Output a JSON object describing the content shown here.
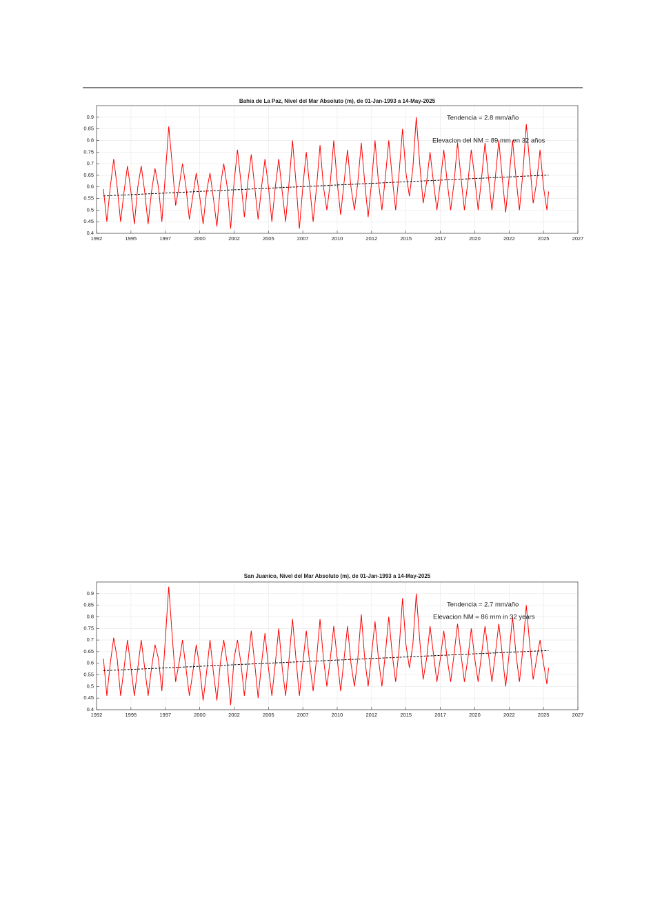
{
  "chart_data": [
    {
      "type": "line",
      "title": "Bahia de La Paz, Nivel del Mar Absoluto (m), de 01-Jan-1993 a 14-May-2025",
      "annotations": [
        "Tendencia = 2.8 mm/año",
        "Elevacion del NM = 89 mm en 32 años"
      ],
      "xlim": [
        1992.5,
        2027.5
      ],
      "xticks": [
        {
          "value": 1992.5,
          "label": "1992"
        },
        1995,
        {
          "value": 1997.5,
          "label": "1997"
        },
        2000,
        {
          "value": 2002.5,
          "label": "2002"
        },
        2005,
        {
          "value": 2007.5,
          "label": "2007"
        },
        2010,
        {
          "value": 2012.5,
          "label": "2012"
        },
        2015,
        {
          "value": 2017.5,
          "label": "2017"
        },
        2020,
        {
          "value": 2022.5,
          "label": "2022"
        },
        2025,
        {
          "value": 2027.5,
          "label": "2027"
        }
      ],
      "ylim": [
        0.4,
        0.95
      ],
      "yticks": [
        0.4,
        0.45,
        0.5,
        0.55,
        0.6,
        0.65,
        0.7,
        0.75,
        0.8,
        0.85,
        0.9
      ],
      "grid": true,
      "x": [
        1993,
        1993.25,
        1993.5,
        1993.75,
        1994,
        1994.25,
        1994.5,
        1994.75,
        1995,
        1995.25,
        1995.5,
        1995.75,
        1996,
        1996.25,
        1996.5,
        1996.75,
        1997,
        1997.25,
        1997.5,
        1997.75,
        1998,
        1998.25,
        1998.5,
        1998.75,
        1999,
        1999.25,
        1999.5,
        1999.75,
        2000,
        2000.25,
        2000.5,
        2000.75,
        2001,
        2001.25,
        2001.5,
        2001.75,
        2002,
        2002.25,
        2002.5,
        2002.75,
        2003,
        2003.25,
        2003.5,
        2003.75,
        2004,
        2004.25,
        2004.5,
        2004.75,
        2005,
        2005.25,
        2005.5,
        2005.75,
        2006,
        2006.25,
        2006.5,
        2006.75,
        2007,
        2007.25,
        2007.5,
        2007.75,
        2008,
        2008.25,
        2008.5,
        2008.75,
        2009,
        2009.25,
        2009.5,
        2009.75,
        2010,
        2010.25,
        2010.5,
        2010.75,
        2011,
        2011.25,
        2011.5,
        2011.75,
        2012,
        2012.25,
        2012.5,
        2012.75,
        2013,
        2013.25,
        2013.5,
        2013.75,
        2014,
        2014.25,
        2014.5,
        2014.75,
        2015,
        2015.25,
        2015.5,
        2015.75,
        2016,
        2016.25,
        2016.5,
        2016.75,
        2017,
        2017.25,
        2017.5,
        2017.75,
        2018,
        2018.25,
        2018.5,
        2018.75,
        2019,
        2019.25,
        2019.5,
        2019.75,
        2020,
        2020.25,
        2020.5,
        2020.75,
        2021,
        2021.25,
        2021.5,
        2021.75,
        2022,
        2022.25,
        2022.5,
        2022.75,
        2023,
        2023.25,
        2023.5,
        2023.75,
        2024,
        2024.25,
        2024.5,
        2024.75,
        2025,
        2025.25,
        2025.37
      ],
      "series": [
        {
          "color": "#ff0000",
          "values": [
            0.59,
            0.45,
            0.6,
            0.72,
            0.6,
            0.45,
            0.58,
            0.69,
            0.58,
            0.44,
            0.6,
            0.69,
            0.58,
            0.44,
            0.58,
            0.68,
            0.6,
            0.45,
            0.65,
            0.86,
            0.7,
            0.52,
            0.6,
            0.7,
            0.6,
            0.46,
            0.56,
            0.66,
            0.56,
            0.44,
            0.58,
            0.66,
            0.55,
            0.43,
            0.6,
            0.7,
            0.6,
            0.42,
            0.62,
            0.76,
            0.62,
            0.47,
            0.62,
            0.74,
            0.6,
            0.46,
            0.6,
            0.72,
            0.6,
            0.45,
            0.6,
            0.72,
            0.58,
            0.45,
            0.62,
            0.8,
            0.62,
            0.42,
            0.6,
            0.75,
            0.6,
            0.45,
            0.6,
            0.78,
            0.6,
            0.5,
            0.62,
            0.8,
            0.62,
            0.48,
            0.62,
            0.76,
            0.6,
            0.5,
            0.62,
            0.79,
            0.62,
            0.47,
            0.62,
            0.8,
            0.62,
            0.5,
            0.64,
            0.8,
            0.64,
            0.5,
            0.66,
            0.85,
            0.66,
            0.56,
            0.68,
            0.9,
            0.7,
            0.53,
            0.62,
            0.75,
            0.62,
            0.5,
            0.62,
            0.76,
            0.62,
            0.5,
            0.62,
            0.79,
            0.64,
            0.5,
            0.62,
            0.76,
            0.64,
            0.5,
            0.64,
            0.79,
            0.64,
            0.5,
            0.64,
            0.8,
            0.64,
            0.49,
            0.64,
            0.8,
            0.64,
            0.5,
            0.66,
            0.87,
            0.7,
            0.53,
            0.62,
            0.76,
            0.6,
            0.5,
            0.58
          ]
        }
      ],
      "trend": {
        "color": "#000000",
        "x": [
          1993,
          2025.37
        ],
        "values": [
          0.561,
          0.651
        ]
      }
    },
    {
      "type": "line",
      "title": "San Juanico, Nivel del Mar Absoluto (m), de 01-Jan-1993 a 14-May-2025",
      "annotations": [
        "Tendencia = 2.7 mm/año",
        "Elevacion NM = 86 mm in 32 years"
      ],
      "xlim": [
        1992.5,
        2027.5
      ],
      "xticks": [
        {
          "value": 1992.5,
          "label": "1992"
        },
        1995,
        {
          "value": 1997.5,
          "label": "1997"
        },
        2000,
        {
          "value": 2002.5,
          "label": "2002"
        },
        2005,
        {
          "value": 2007.5,
          "label": "2007"
        },
        2010,
        {
          "value": 2012.5,
          "label": "2012"
        },
        2015,
        {
          "value": 2017.5,
          "label": "2017"
        },
        2020,
        {
          "value": 2022.5,
          "label": "2022"
        },
        2025,
        {
          "value": 2027.5,
          "label": "2027"
        }
      ],
      "ylim": [
        0.4,
        0.95
      ],
      "yticks": [
        0.4,
        0.45,
        0.5,
        0.55,
        0.6,
        0.65,
        0.7,
        0.75,
        0.8,
        0.85,
        0.9
      ],
      "grid": true,
      "x": [
        1993,
        1993.25,
        1993.5,
        1993.75,
        1994,
        1994.25,
        1994.5,
        1994.75,
        1995,
        1995.25,
        1995.5,
        1995.75,
        1996,
        1996.25,
        1996.5,
        1996.75,
        1997,
        1997.25,
        1997.5,
        1997.75,
        1998,
        1998.25,
        1998.5,
        1998.75,
        1999,
        1999.25,
        1999.5,
        1999.75,
        2000,
        2000.25,
        2000.5,
        2000.75,
        2001,
        2001.25,
        2001.5,
        2001.75,
        2002,
        2002.25,
        2002.5,
        2002.75,
        2003,
        2003.25,
        2003.5,
        2003.75,
        2004,
        2004.25,
        2004.5,
        2004.75,
        2005,
        2005.25,
        2005.5,
        2005.75,
        2006,
        2006.25,
        2006.5,
        2006.75,
        2007,
        2007.25,
        2007.5,
        2007.75,
        2008,
        2008.25,
        2008.5,
        2008.75,
        2009,
        2009.25,
        2009.5,
        2009.75,
        2010,
        2010.25,
        2010.5,
        2010.75,
        2011,
        2011.25,
        2011.5,
        2011.75,
        2012,
        2012.25,
        2012.5,
        2012.75,
        2013,
        2013.25,
        2013.5,
        2013.75,
        2014,
        2014.25,
        2014.5,
        2014.75,
        2015,
        2015.25,
        2015.5,
        2015.75,
        2016,
        2016.25,
        2016.5,
        2016.75,
        2017,
        2017.25,
        2017.5,
        2017.75,
        2018,
        2018.25,
        2018.5,
        2018.75,
        2019,
        2019.25,
        2019.5,
        2019.75,
        2020,
        2020.25,
        2020.5,
        2020.75,
        2021,
        2021.25,
        2021.5,
        2021.75,
        2022,
        2022.25,
        2022.5,
        2022.75,
        2023,
        2023.25,
        2023.5,
        2023.75,
        2024,
        2024.25,
        2024.5,
        2024.75,
        2025,
        2025.25,
        2025.37
      ],
      "series": [
        {
          "color": "#ff0000",
          "values": [
            0.62,
            0.46,
            0.6,
            0.71,
            0.62,
            0.46,
            0.58,
            0.7,
            0.58,
            0.46,
            0.58,
            0.7,
            0.58,
            0.46,
            0.58,
            0.68,
            0.62,
            0.48,
            0.7,
            0.93,
            0.72,
            0.52,
            0.6,
            0.7,
            0.58,
            0.46,
            0.56,
            0.68,
            0.58,
            0.44,
            0.56,
            0.7,
            0.56,
            0.44,
            0.6,
            0.7,
            0.6,
            0.42,
            0.62,
            0.7,
            0.6,
            0.46,
            0.6,
            0.74,
            0.6,
            0.45,
            0.6,
            0.73,
            0.58,
            0.46,
            0.6,
            0.75,
            0.58,
            0.46,
            0.62,
            0.79,
            0.62,
            0.46,
            0.6,
            0.74,
            0.6,
            0.48,
            0.62,
            0.79,
            0.62,
            0.5,
            0.62,
            0.76,
            0.62,
            0.48,
            0.62,
            0.76,
            0.6,
            0.5,
            0.62,
            0.81,
            0.62,
            0.5,
            0.64,
            0.78,
            0.62,
            0.5,
            0.64,
            0.8,
            0.64,
            0.52,
            0.66,
            0.88,
            0.68,
            0.58,
            0.68,
            0.9,
            0.7,
            0.53,
            0.62,
            0.76,
            0.64,
            0.52,
            0.62,
            0.74,
            0.62,
            0.52,
            0.64,
            0.77,
            0.64,
            0.52,
            0.62,
            0.75,
            0.62,
            0.52,
            0.64,
            0.76,
            0.64,
            0.52,
            0.64,
            0.77,
            0.64,
            0.5,
            0.64,
            0.8,
            0.64,
            0.52,
            0.66,
            0.85,
            0.68,
            0.53,
            0.62,
            0.7,
            0.6,
            0.51,
            0.58
          ]
        }
      ],
      "trend": {
        "color": "#000000",
        "x": [
          1993,
          2025.37
        ],
        "values": [
          0.568,
          0.655
        ]
      }
    }
  ]
}
